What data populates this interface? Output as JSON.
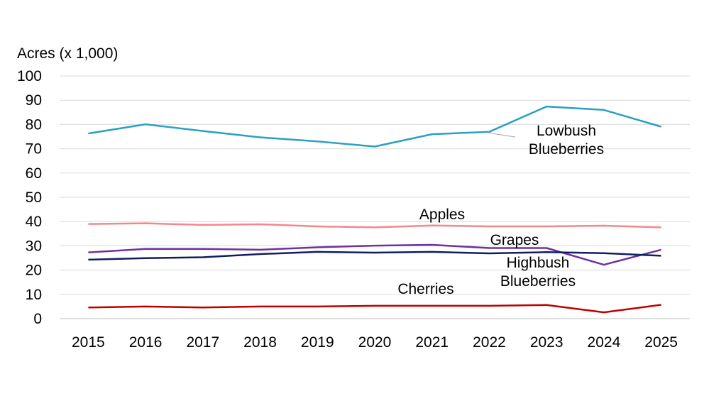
{
  "chart_data": {
    "type": "line",
    "title": "",
    "ylabel": "Acres (x 1,000)",
    "xlabel": "",
    "ylim": [
      0,
      100
    ],
    "yticks": [
      0,
      10,
      20,
      30,
      40,
      50,
      60,
      70,
      80,
      90,
      100
    ],
    "grid": "horizontal",
    "categories": [
      "2015",
      "2016",
      "2017",
      "2018",
      "2019",
      "2020",
      "2021",
      "2022",
      "2023",
      "2024",
      "2025"
    ],
    "series": [
      {
        "name": "Lowbush Blueberries",
        "label_lines": [
          "Lowbush",
          "Blueberries"
        ],
        "color": "#2aa1c0",
        "values": [
          76.3,
          80.1,
          77.3,
          74.7,
          73.0,
          70.9,
          76.0,
          77.0,
          87.4,
          86.0,
          79.1
        ]
      },
      {
        "name": "Apples",
        "label_lines": [
          "Apples"
        ],
        "color": "#f4878a",
        "values": [
          39.0,
          39.3,
          38.6,
          38.9,
          38.0,
          37.6,
          38.4,
          38.0,
          38.0,
          38.3,
          37.6
        ]
      },
      {
        "name": "Grapes",
        "label_lines": [
          "Grapes"
        ],
        "color": "#7030a0",
        "values": [
          27.3,
          28.7,
          28.7,
          28.4,
          29.4,
          30.1,
          30.4,
          29.1,
          29.1,
          22.2,
          28.4
        ]
      },
      {
        "name": "Highbush Blueberries",
        "label_lines": [
          "Highbush",
          "Blueberries"
        ],
        "color": "#0f1f5c",
        "values": [
          24.3,
          24.9,
          25.3,
          26.6,
          27.5,
          27.2,
          27.5,
          26.9,
          27.4,
          27.0,
          25.9
        ]
      },
      {
        "name": "Cherries",
        "label_lines": [
          "Cherries"
        ],
        "color": "#c00000",
        "values": [
          4.6,
          5.0,
          4.6,
          5.0,
          5.0,
          5.3,
          5.3,
          5.3,
          5.6,
          2.6,
          5.7
        ]
      }
    ]
  }
}
